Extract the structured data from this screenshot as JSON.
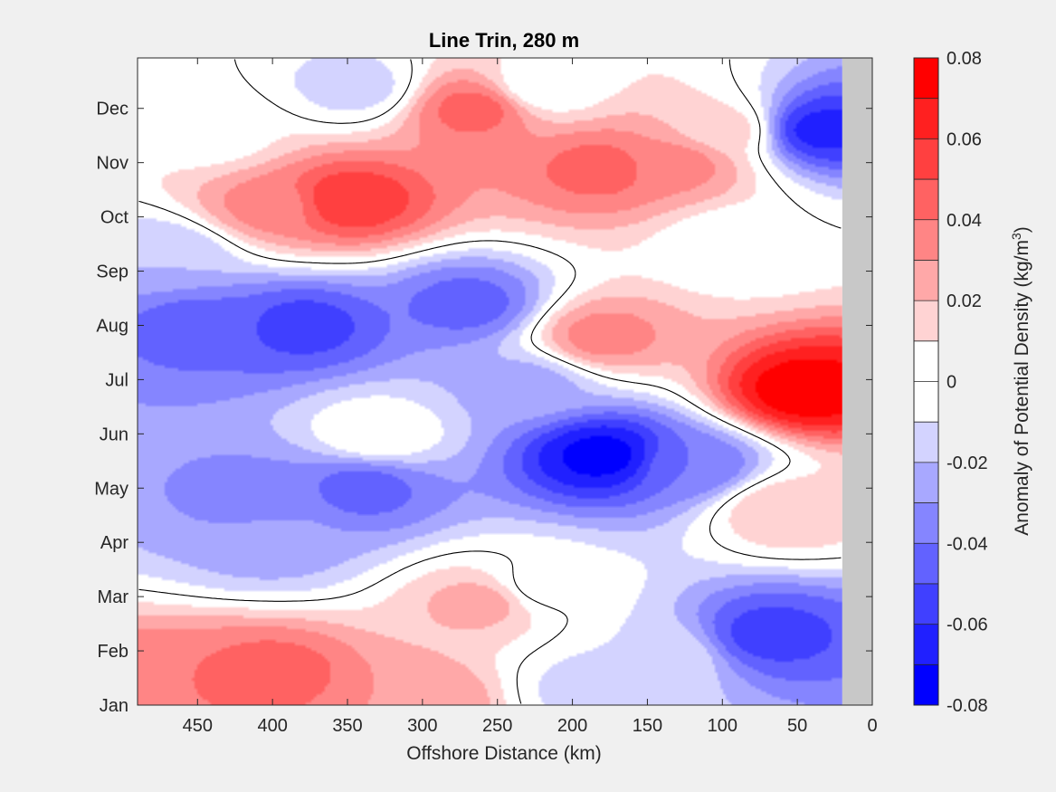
{
  "chart_data": {
    "type": "heatmap",
    "title": "Line Trin, 280 m",
    "xlabel": "Offshore Distance (km)",
    "ylabel": "",
    "xlim": [
      490,
      0
    ],
    "x_reversed": true,
    "xticks": [
      450,
      400,
      350,
      300,
      250,
      200,
      150,
      100,
      50,
      0
    ],
    "y_tick_labels": [
      "Jan",
      "Feb",
      "Mar",
      "Apr",
      "May",
      "Jun",
      "Jul",
      "Aug",
      "Sep",
      "Oct",
      "Nov",
      "Dec"
    ],
    "y_tick_months": [
      1,
      2,
      3,
      4,
      5,
      6,
      7,
      8,
      9,
      10,
      11,
      12
    ],
    "ylim_months": [
      1,
      12.93
    ],
    "nodata_x_range": [
      20,
      0
    ],
    "nodata_color": "#c8c8c8",
    "grid": false,
    "contour_levels": [
      -0.08,
      -0.07,
      -0.06,
      -0.05,
      -0.04,
      -0.03,
      -0.02,
      -0.01,
      0,
      0.01,
      0.02,
      0.03,
      0.04,
      0.05,
      0.06,
      0.07,
      0.08
    ],
    "zero_contour_color": "#000000",
    "colorbar": {
      "label_text": "Anomaly of Potential Density (kg/m",
      "label_superscript": "3",
      "label_close": ")",
      "range": [
        -0.08,
        0.08
      ],
      "tick_values": [
        0.08,
        0.06,
        0.04,
        0.02,
        0,
        -0.02,
        -0.04,
        -0.06,
        -0.08
      ],
      "tick_labels": [
        "0.08",
        "0.06",
        "0.04",
        "0.02",
        "0",
        "-0.02",
        "-0.04",
        "-0.06",
        "-0.08"
      ],
      "colors": [
        "#0000ff",
        "#2020ff",
        "#4040ff",
        "#6262ff",
        "#8585ff",
        "#a8a8ff",
        "#d3d3ff",
        "#ffffff",
        "#ffffff",
        "#ffd3d3",
        "#ffa8a8",
        "#ff8585",
        "#ff6262",
        "#ff4040",
        "#ff2020",
        "#ff0000"
      ],
      "location": "right"
    },
    "features": [
      {
        "x": 350,
        "y": 10.3,
        "value": 0.06
      },
      {
        "x": 400,
        "y": 10.2,
        "value": 0.035
      },
      {
        "x": 180,
        "y": 10.9,
        "value": 0.045
      },
      {
        "x": 265,
        "y": 12.0,
        "value": 0.045
      },
      {
        "x": 400,
        "y": 1.6,
        "value": 0.045
      },
      {
        "x": 470,
        "y": 1.4,
        "value": 0.04
      },
      {
        "x": 380,
        "y": 8.0,
        "value": -0.055
      },
      {
        "x": 450,
        "y": 8.0,
        "value": -0.045
      },
      {
        "x": 270,
        "y": 8.4,
        "value": -0.045
      },
      {
        "x": 340,
        "y": 5.0,
        "value": -0.045
      },
      {
        "x": 410,
        "y": 4.8,
        "value": -0.035
      },
      {
        "x": 180,
        "y": 5.6,
        "value": -0.075
      },
      {
        "x": 120,
        "y": 5.4,
        "value": -0.04
      },
      {
        "x": 70,
        "y": 2.3,
        "value": -0.055
      },
      {
        "x": 35,
        "y": 11.6,
        "value": -0.065
      },
      {
        "x": 45,
        "y": 6.8,
        "value": 0.078
      },
      {
        "x": 180,
        "y": 7.8,
        "value": 0.035
      },
      {
        "x": 345,
        "y": 12.4,
        "value": -0.015
      },
      {
        "x": 185,
        "y": 1.3,
        "value": -0.015
      },
      {
        "x": 330,
        "y": 6.0,
        "value": 0.0
      },
      {
        "x": 220,
        "y": 12.4,
        "value": 0.0
      },
      {
        "x": 440,
        "y": 11.5,
        "value": 0.005
      },
      {
        "x": 400,
        "y": 4.0,
        "value": -0.025
      },
      {
        "x": 260,
        "y": 2.9,
        "value": 0.025
      },
      {
        "x": 130,
        "y": 11.0,
        "value": 0.035
      },
      {
        "x": 100,
        "y": 11.6,
        "value": 0.015
      },
      {
        "x": 300,
        "y": 1.1,
        "value": 0.03
      },
      {
        "x": 140,
        "y": 1.9,
        "value": -0.01
      },
      {
        "x": 220,
        "y": 3.2,
        "value": -0.005
      },
      {
        "x": 60,
        "y": 4.6,
        "value": 0.02
      },
      {
        "x": 90,
        "y": 9.5,
        "value": 0.0
      },
      {
        "x": 470,
        "y": 9.3,
        "value": -0.02
      },
      {
        "x": 230,
        "y": 6.9,
        "value": -0.025
      }
    ]
  }
}
